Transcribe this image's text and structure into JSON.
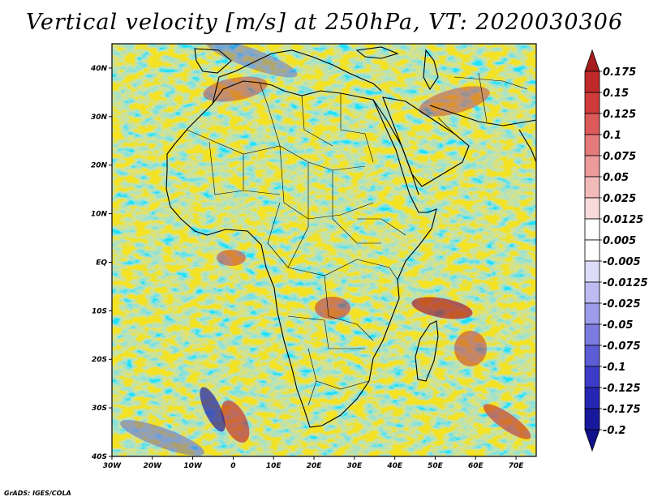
{
  "title": "Vertical velocity [m/s] at 250hPa, VT: 2020030306",
  "credit": "GrADS: IGES/COLA",
  "map": {
    "lon_range": [
      -30,
      75
    ],
    "lat_range": [
      -40,
      45
    ],
    "lon_ticks": [
      {
        "value": -30,
        "label": "30W"
      },
      {
        "value": -20,
        "label": "20W"
      },
      {
        "value": -10,
        "label": "10W"
      },
      {
        "value": 0,
        "label": "0"
      },
      {
        "value": 10,
        "label": "10E"
      },
      {
        "value": 20,
        "label": "20E"
      },
      {
        "value": 30,
        "label": "30E"
      },
      {
        "value": 40,
        "label": "40E"
      },
      {
        "value": 50,
        "label": "50E"
      },
      {
        "value": 60,
        "label": "60E"
      },
      {
        "value": 70,
        "label": "70E"
      }
    ],
    "lat_ticks": [
      {
        "value": 40,
        "label": "40N"
      },
      {
        "value": 30,
        "label": "30N"
      },
      {
        "value": 20,
        "label": "20N"
      },
      {
        "value": 10,
        "label": "10N"
      },
      {
        "value": 0,
        "label": "EQ"
      },
      {
        "value": -10,
        "label": "10S"
      },
      {
        "value": -20,
        "label": "20S"
      },
      {
        "value": -30,
        "label": "30S"
      },
      {
        "value": -40,
        "label": "40S"
      }
    ]
  },
  "colorbar": {
    "labels": [
      "0.175",
      "0.15",
      "0.125",
      "0.1",
      "0.075",
      "0.05",
      "0.025",
      "0.0125",
      "0.005",
      "-0.005",
      "-0.0125",
      "-0.025",
      "-0.05",
      "-0.075",
      "-0.1",
      "-0.125",
      "-0.175",
      "-0.2"
    ],
    "colors": [
      "#a51d1d",
      "#c02a2a",
      "#cf3a3a",
      "#dc5a5a",
      "#e57a7a",
      "#ec9a9a",
      "#f3baba",
      "#f9dada",
      "#ffffff",
      "#ffffff",
      "#dcdcf8",
      "#bcbcf2",
      "#9c9cea",
      "#7c7ce0",
      "#5c5cd6",
      "#3c3cc8",
      "#2626b4",
      "#18189c",
      "#10108a"
    ]
  }
}
